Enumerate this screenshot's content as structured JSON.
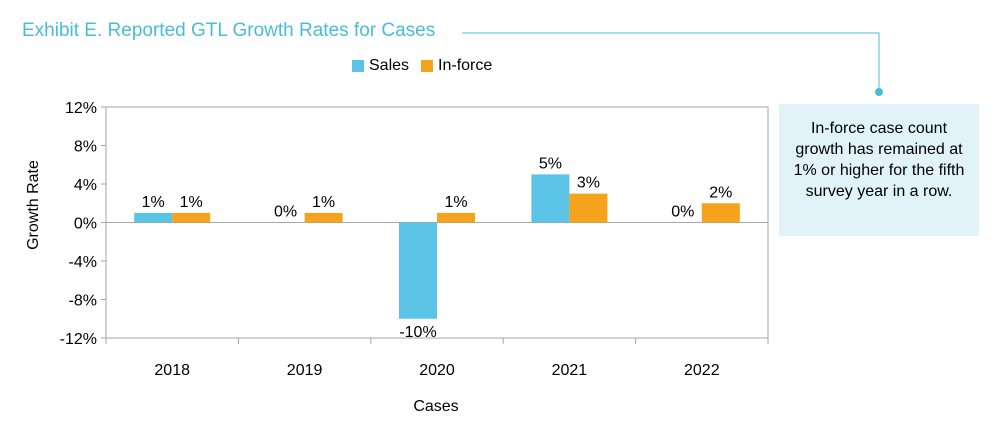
{
  "exhibit_title": "Exhibit E. Reported GTL Growth Rates for Cases",
  "callout_text": "In-force case count growth has remained at 1% or higher for the fifth survey year in a row.",
  "colors": {
    "accent": "#4bbcd8",
    "sales": "#5ac3e6",
    "inforce": "#f5a31c",
    "callout_bg": "#e1f3f9"
  },
  "chart_data": {
    "type": "bar",
    "title": "",
    "xlabel": "Cases",
    "ylabel": "Growth Rate",
    "ylim": [
      -12,
      12
    ],
    "yticks": [
      12,
      8,
      4,
      0,
      -4,
      -8,
      -12
    ],
    "ytick_labels": [
      "12%",
      "8%",
      "4%",
      "0%",
      "-4%",
      "-8%",
      "-12%"
    ],
    "categories": [
      "2018",
      "2019",
      "2020",
      "2021",
      "2022"
    ],
    "series": [
      {
        "name": "Sales",
        "values": [
          1,
          0,
          -10,
          5,
          0
        ],
        "labels": [
          "1%",
          "0%",
          "-10%",
          "5%",
          "0%"
        ]
      },
      {
        "name": "In-force",
        "values": [
          1,
          1,
          1,
          3,
          2
        ],
        "labels": [
          "1%",
          "1%",
          "1%",
          "3%",
          "2%"
        ]
      }
    ],
    "legend_position": "top",
    "grid": false
  }
}
